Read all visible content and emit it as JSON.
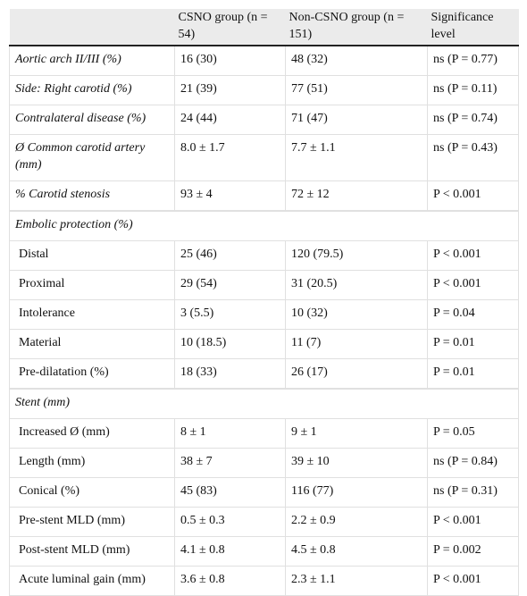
{
  "table": {
    "columns": [
      "CSNO group (n = 54)",
      "Non-CSNO group (n = 151)",
      "Significance level"
    ],
    "rows": [
      [
        "Aortic arch II/III (%)",
        "16 (30)",
        "48 (32)",
        "ns (P = 0.77)"
      ],
      [
        "Side: Right carotid (%)",
        "21 (39)",
        "77 (51)",
        "ns (P = 0.11)"
      ],
      [
        "Contralateral disease (%)",
        "24 (44)",
        "71 (47)",
        "ns (P = 0.74)"
      ],
      [
        "Ø Common carotid artery (mm)",
        "8.0 ± 1.7",
        "7.7 ± 1.1",
        "ns (P = 0.43)"
      ],
      [
        "% Carotid stenosis",
        "93 ± 4",
        "72 ± 12",
        "P < 0.001"
      ]
    ],
    "sections": [
      {
        "heading": "Embolic protection (%)",
        "rows": [
          [
            "Distal",
            "25 (46)",
            "120 (79.5)",
            "P < 0.001"
          ],
          [
            "Proximal",
            "29 (54)",
            "31 (20.5)",
            "P < 0.001"
          ],
          [
            "Intolerance",
            "3 (5.5)",
            "10 (32)",
            "P = 0.04"
          ],
          [
            "Material",
            "10 (18.5)",
            "11 (7)",
            "P = 0.01"
          ],
          [
            "Pre-dilatation (%)",
            "18 (33)",
            "26 (17)",
            "P = 0.01"
          ]
        ]
      },
      {
        "heading": "Stent (mm)",
        "rows": [
          [
            "Increased Ø (mm)",
            "8 ± 1",
            "9 ± 1",
            "P = 0.05"
          ],
          [
            "Length (mm)",
            "38 ± 7",
            "39 ± 10",
            "ns (P = 0.84)"
          ],
          [
            "Conical (%)",
            "45 (83)",
            "116 (77)",
            "ns (P = 0.31)"
          ],
          [
            "Pre-stent MLD (mm)",
            "0.5 ± 0.3",
            "2.2 ± 0.9",
            "P < 0.001"
          ],
          [
            "Post-stent MLD (mm)",
            "4.1 ± 0.8",
            "4.5 ± 0.8",
            "P = 0.002"
          ],
          [
            "Acute luminal gain (mm)",
            "3.6 ± 0.8",
            "2.3 ± 1.1",
            "P < 0.001"
          ]
        ]
      }
    ]
  }
}
